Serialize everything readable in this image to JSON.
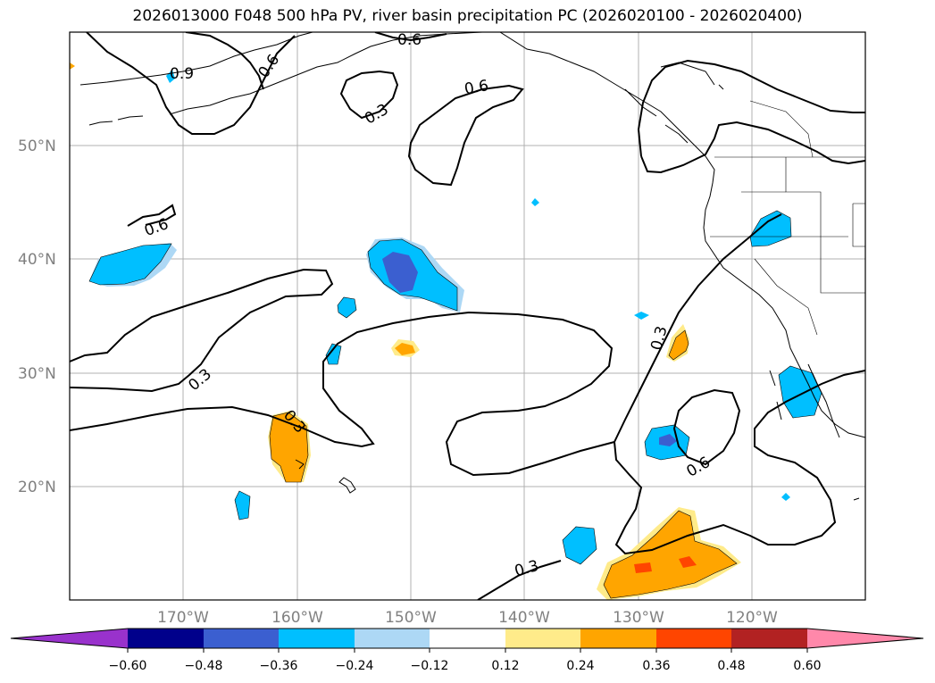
{
  "title": "2026013000 F048 500 hPa PV, river basin precipitation PC (2026020100 - 2026020400)",
  "map": {
    "lat_ticks": [
      "50°N",
      "40°N",
      "30°N",
      "20°N"
    ],
    "lon_ticks": [
      "170°W",
      "160°W",
      "150°W",
      "140°W",
      "130°W",
      "120°W"
    ],
    "contour_labels": [
      "0.9",
      "0.6",
      "0.6",
      "0.3",
      "0.6",
      "0.6",
      "0.3",
      "0.3",
      "0.3",
      "0.6",
      "0.3"
    ]
  },
  "colorbar": {
    "colors": {
      "c0": "#9932cc",
      "c1": "#00008b",
      "c2": "#3b5fd0",
      "c3": "#00bfff",
      "c4": "#add8f5",
      "c5": "#ffffff",
      "c6": "#ffeb8a",
      "c7": "#ffa500",
      "c8": "#ff4500",
      "c9": "#b22222",
      "c10": "#ff88aa"
    },
    "tick_labels": [
      "−0.60",
      "−0.48",
      "−0.36",
      "−0.24",
      "−0.12",
      "0.12",
      "0.24",
      "0.36",
      "0.48",
      "0.60"
    ]
  }
}
